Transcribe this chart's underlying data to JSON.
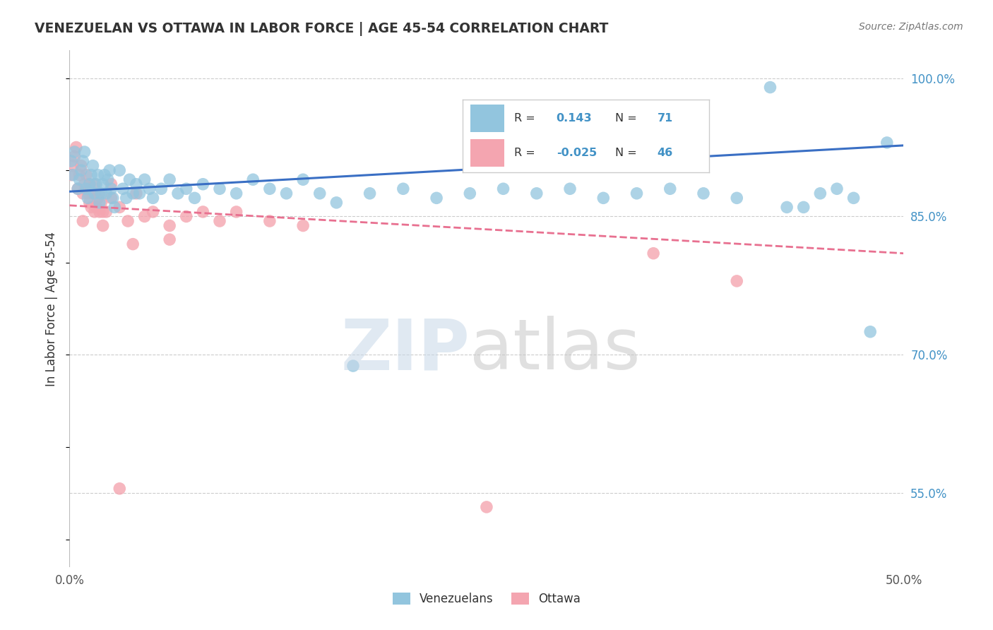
{
  "title": "VENEZUELAN VS OTTAWA IN LABOR FORCE | AGE 45-54 CORRELATION CHART",
  "source": "Source: ZipAtlas.com",
  "ylabel": "In Labor Force | Age 45-54",
  "xlim": [
    0.0,
    0.5
  ],
  "ylim": [
    0.47,
    1.03
  ],
  "xtick_positions": [
    0.0,
    0.1,
    0.2,
    0.3,
    0.4,
    0.5
  ],
  "xtick_labels": [
    "0.0%",
    "",
    "",
    "",
    "",
    "50.0%"
  ],
  "ytick_positions": [
    0.55,
    0.7,
    0.85,
    1.0
  ],
  "ytick_labels": [
    "55.0%",
    "70.0%",
    "85.0%",
    "100.0%"
  ],
  "blue_color": "#92c5de",
  "pink_color": "#f4a5b0",
  "blue_line_color": "#3a6fc4",
  "pink_line_color": "#e87090",
  "grid_color": "#cccccc",
  "legend_R_blue": "0.143",
  "legend_N_blue": "71",
  "legend_R_pink": "-0.025",
  "legend_N_pink": "46",
  "blue_line_x0": 0.0,
  "blue_line_y0": 0.877,
  "blue_line_x1": 0.5,
  "blue_line_y1": 0.927,
  "pink_line_x0": 0.0,
  "pink_line_y0": 0.862,
  "pink_line_x1": 0.5,
  "pink_line_y1": 0.81,
  "blue_x": [
    0.001,
    0.002,
    0.003,
    0.005,
    0.006,
    0.007,
    0.008,
    0.009,
    0.01,
    0.011,
    0.012,
    0.013,
    0.014,
    0.015,
    0.016,
    0.017,
    0.018,
    0.019,
    0.02,
    0.021,
    0.022,
    0.023,
    0.024,
    0.025,
    0.026,
    0.027,
    0.03,
    0.032,
    0.034,
    0.036,
    0.038,
    0.04,
    0.042,
    0.045,
    0.048,
    0.05,
    0.055,
    0.06,
    0.065,
    0.07,
    0.075,
    0.08,
    0.09,
    0.1,
    0.11,
    0.12,
    0.13,
    0.14,
    0.15,
    0.16,
    0.17,
    0.18,
    0.2,
    0.22,
    0.24,
    0.26,
    0.28,
    0.3,
    0.32,
    0.34,
    0.36,
    0.38,
    0.4,
    0.42,
    0.43,
    0.44,
    0.45,
    0.46,
    0.47,
    0.48,
    0.49
  ],
  "blue_y": [
    0.91,
    0.895,
    0.92,
    0.88,
    0.89,
    0.9,
    0.91,
    0.92,
    0.88,
    0.87,
    0.885,
    0.895,
    0.905,
    0.875,
    0.885,
    0.895,
    0.865,
    0.875,
    0.885,
    0.895,
    0.875,
    0.89,
    0.9,
    0.88,
    0.87,
    0.86,
    0.9,
    0.88,
    0.87,
    0.89,
    0.875,
    0.885,
    0.875,
    0.89,
    0.88,
    0.87,
    0.88,
    0.89,
    0.875,
    0.88,
    0.87,
    0.885,
    0.88,
    0.875,
    0.89,
    0.88,
    0.875,
    0.89,
    0.875,
    0.865,
    0.688,
    0.875,
    0.88,
    0.87,
    0.875,
    0.88,
    0.875,
    0.88,
    0.87,
    0.875,
    0.88,
    0.875,
    0.87,
    0.99,
    0.86,
    0.86,
    0.875,
    0.88,
    0.87,
    0.725,
    0.93
  ],
  "pink_x": [
    0.001,
    0.002,
    0.003,
    0.004,
    0.005,
    0.006,
    0.007,
    0.008,
    0.009,
    0.01,
    0.011,
    0.012,
    0.013,
    0.014,
    0.015,
    0.016,
    0.017,
    0.018,
    0.019,
    0.02,
    0.025,
    0.03,
    0.035,
    0.04,
    0.045,
    0.05,
    0.06,
    0.07,
    0.08,
    0.09,
    0.1,
    0.12,
    0.14,
    0.03,
    0.25,
    0.35,
    0.4,
    0.02,
    0.025,
    0.015,
    0.012,
    0.018,
    0.022,
    0.008,
    0.038,
    0.06
  ],
  "pink_y": [
    0.895,
    0.905,
    0.915,
    0.925,
    0.88,
    0.895,
    0.905,
    0.875,
    0.885,
    0.895,
    0.875,
    0.885,
    0.86,
    0.875,
    0.885,
    0.86,
    0.87,
    0.855,
    0.865,
    0.855,
    0.885,
    0.86,
    0.845,
    0.875,
    0.85,
    0.855,
    0.84,
    0.85,
    0.855,
    0.845,
    0.855,
    0.845,
    0.84,
    0.555,
    0.535,
    0.81,
    0.78,
    0.84,
    0.87,
    0.855,
    0.865,
    0.875,
    0.855,
    0.845,
    0.82,
    0.825
  ]
}
